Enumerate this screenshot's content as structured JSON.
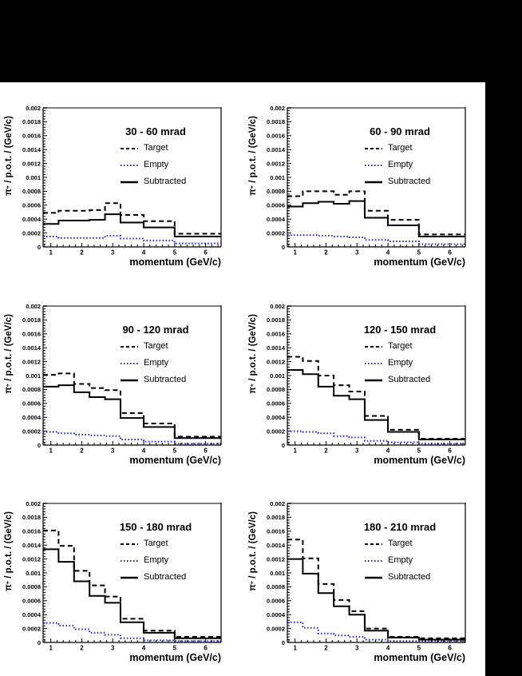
{
  "colors": {
    "background": "#ffffff",
    "mask": "#000000",
    "frame_top_border": "#7f7f7f",
    "axis": "#000000",
    "target": "#000000",
    "empty": "#2222cc",
    "subtracted": "#000000"
  },
  "axis": {
    "x_label": "momentum (GeV/c)",
    "y_label_pi": "π",
    "y_label_sup": "+",
    "y_label_rest": " / p.o.t. / (GeV/c)",
    "x_ticks": [
      "1",
      "2",
      "3",
      "4",
      "5",
      "6"
    ],
    "y_ticks": [
      "0",
      "0.0002",
      "0.0004",
      "0.0006",
      "0.0008",
      "0.001",
      "0.0012",
      "0.0014",
      "0.0016",
      "0.0018",
      "0.002"
    ],
    "x_range": [
      0.75,
      6.5
    ],
    "y_range": [
      0,
      0.002
    ]
  },
  "legend": {
    "entries": [
      {
        "label": "Target",
        "style": "dashed",
        "color": "#000000"
      },
      {
        "label": "Empty",
        "style": "dotted",
        "color": "#2222cc"
      },
      {
        "label": "Subtracted",
        "style": "solid",
        "color": "#000000"
      }
    ]
  },
  "chart_data": [
    {
      "type": "line",
      "subtype": "step-histogram",
      "title": "30 - 60 mrad",
      "xlabel": "momentum (GeV/c)",
      "ylabel": "π+ / p.o.t. / (GeV/c)",
      "xlim": [
        0.75,
        6.5
      ],
      "ylim": [
        0,
        0.002
      ],
      "bin_edges": [
        0.75,
        1.25,
        1.75,
        2.25,
        2.75,
        3.25,
        4.0,
        5.0,
        6.5
      ],
      "series": [
        {
          "name": "Target",
          "values": [
            0.00049,
            0.00052,
            0.00052,
            0.00053,
            0.00063,
            0.00046,
            0.00037,
            0.00019
          ]
        },
        {
          "name": "Empty",
          "values": [
            0.00015,
            0.00013,
            0.00013,
            0.00013,
            0.00016,
            0.00012,
            9e-05,
            5e-05
          ]
        },
        {
          "name": "Subtracted",
          "values": [
            0.00033,
            0.00038,
            0.00038,
            0.00039,
            0.00047,
            0.00035,
            0.00028,
            0.00015
          ]
        }
      ]
    },
    {
      "type": "line",
      "subtype": "step-histogram",
      "title": "60 - 90 mrad",
      "xlabel": "momentum (GeV/c)",
      "ylabel": "π+ / p.o.t. / (GeV/c)",
      "xlim": [
        0.75,
        6.5
      ],
      "ylim": [
        0,
        0.002
      ],
      "bin_edges": [
        0.75,
        1.25,
        1.75,
        2.25,
        2.75,
        3.25,
        4.0,
        5.0,
        6.5
      ],
      "series": [
        {
          "name": "Target",
          "values": [
            0.00073,
            0.0008,
            0.0008,
            0.00075,
            0.0008,
            0.00052,
            0.00039,
            0.00018
          ]
        },
        {
          "name": "Empty",
          "values": [
            0.00017,
            0.00017,
            0.00016,
            0.00015,
            0.00014,
            0.0001,
            8e-05,
            4e-05
          ]
        },
        {
          "name": "Subtracted",
          "values": [
            0.00058,
            0.00063,
            0.00065,
            0.00062,
            0.00066,
            0.00042,
            0.00031,
            0.00015
          ]
        }
      ]
    },
    {
      "type": "line",
      "subtype": "step-histogram",
      "title": "90 - 120 mrad",
      "xlabel": "momentum (GeV/c)",
      "ylabel": "π+ / p.o.t. / (GeV/c)",
      "xlim": [
        0.75,
        6.5
      ],
      "ylim": [
        0,
        0.002
      ],
      "bin_edges": [
        0.75,
        1.25,
        1.75,
        2.25,
        2.75,
        3.25,
        4.0,
        5.0,
        6.5
      ],
      "series": [
        {
          "name": "Target",
          "values": [
            0.00101,
            0.00103,
            0.00088,
            0.00082,
            0.00079,
            0.00046,
            0.00031,
            0.00012
          ]
        },
        {
          "name": "Empty",
          "values": [
            0.00019,
            0.00017,
            0.00015,
            0.00014,
            0.00013,
            8e-05,
            5e-05,
            2e-05
          ]
        },
        {
          "name": "Subtracted",
          "values": [
            0.00084,
            0.00086,
            0.00076,
            0.00069,
            0.00066,
            0.00039,
            0.00026,
            0.0001
          ]
        }
      ]
    },
    {
      "type": "line",
      "subtype": "step-histogram",
      "title": "120 - 150 mrad",
      "xlabel": "momentum (GeV/c)",
      "ylabel": "π+ / p.o.t. / (GeV/c)",
      "xlim": [
        0.75,
        6.5
      ],
      "ylim": [
        0,
        0.002
      ],
      "bin_edges": [
        0.75,
        1.25,
        1.75,
        2.25,
        2.75,
        3.25,
        4.0,
        5.0,
        6.5
      ],
      "series": [
        {
          "name": "Target",
          "values": [
            0.00127,
            0.00121,
            0.001,
            0.00086,
            0.00077,
            0.00042,
            0.00022,
            9e-05
          ]
        },
        {
          "name": "Empty",
          "values": [
            0.0002,
            0.00019,
            0.00017,
            0.00013,
            0.00011,
            6e-05,
            4e-05,
            2e-05
          ]
        },
        {
          "name": "Subtracted",
          "values": [
            0.00108,
            0.00102,
            0.00084,
            0.00071,
            0.00066,
            0.00036,
            0.00019,
            8e-05
          ]
        }
      ]
    },
    {
      "type": "line",
      "subtype": "step-histogram",
      "title": "150 - 180 mrad",
      "xlabel": "momentum (GeV/c)",
      "ylabel": "π+ / p.o.t. / (GeV/c)",
      "xlim": [
        0.75,
        6.5
      ],
      "ylim": [
        0,
        0.002
      ],
      "bin_edges": [
        0.75,
        1.25,
        1.75,
        2.25,
        2.75,
        3.25,
        4.0,
        5.0,
        6.5
      ],
      "series": [
        {
          "name": "Target",
          "values": [
            0.00161,
            0.00139,
            0.00103,
            0.00082,
            0.00066,
            0.00034,
            0.00017,
            8e-05
          ]
        },
        {
          "name": "Empty",
          "values": [
            0.00028,
            0.00024,
            0.00019,
            0.00014,
            0.00011,
            6e-05,
            3e-05,
            2e-05
          ]
        },
        {
          "name": "Subtracted",
          "values": [
            0.00134,
            0.00116,
            0.00088,
            0.00067,
            0.00057,
            0.00029,
            0.00014,
            6e-05
          ]
        }
      ]
    },
    {
      "type": "line",
      "subtype": "step-histogram",
      "title": "180 - 210 mrad",
      "xlabel": "momentum (GeV/c)",
      "ylabel": "π+ / p.o.t. / (GeV/c)",
      "xlim": [
        0.75,
        6.5
      ],
      "ylim": [
        0,
        0.002
      ],
      "bin_edges": [
        0.75,
        1.25,
        1.75,
        2.25,
        2.75,
        3.25,
        4.0,
        5.0,
        6.5
      ],
      "series": [
        {
          "name": "Target",
          "values": [
            0.00148,
            0.00121,
            0.00084,
            0.00061,
            0.00045,
            0.0002,
            8e-05,
            6e-05
          ]
        },
        {
          "name": "Empty",
          "values": [
            0.00029,
            0.00021,
            0.00013,
            0.0001,
            8e-05,
            4e-05,
            2e-05,
            2e-05
          ]
        },
        {
          "name": "Subtracted",
          "values": [
            0.0012,
            0.00099,
            0.00071,
            0.00052,
            0.0004,
            0.00017,
            7e-05,
            4e-05
          ]
        }
      ]
    }
  ]
}
